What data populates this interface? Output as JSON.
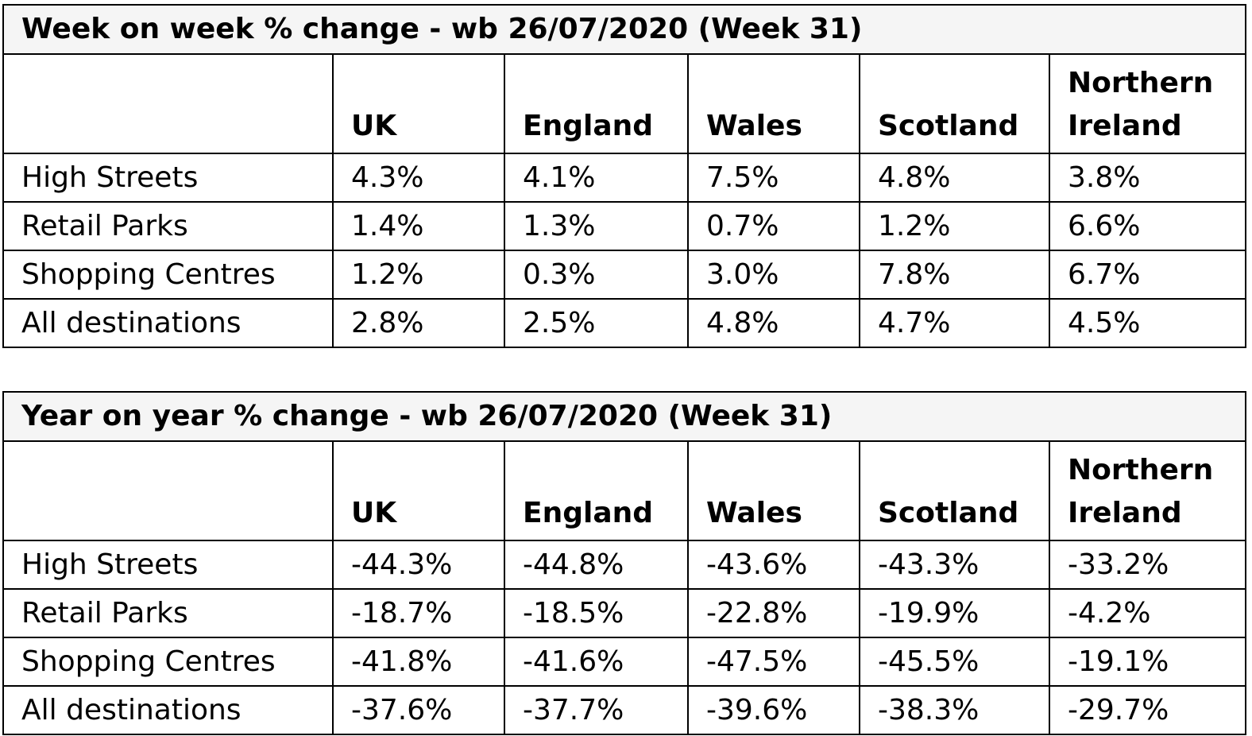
{
  "tables": [
    {
      "title": "Week on week % change - wb 26/07/2020 (Week 31)",
      "columns": [
        "",
        "UK",
        "England",
        "Wales",
        "Scotland",
        "Northern Ireland"
      ],
      "rows": [
        {
          "label": "High Streets",
          "values": [
            "4.3%",
            "4.1%",
            "7.5%",
            "4.8%",
            "3.8%"
          ]
        },
        {
          "label": "Retail Parks",
          "values": [
            "1.4%",
            "1.3%",
            "0.7%",
            "1.2%",
            "6.6%"
          ]
        },
        {
          "label": "Shopping Centres",
          "values": [
            "1.2%",
            "0.3%",
            "3.0%",
            "7.8%",
            "6.7%"
          ]
        },
        {
          "label": "All destinations",
          "values": [
            "2.8%",
            "2.5%",
            "4.8%",
            "4.7%",
            "4.5%"
          ]
        }
      ]
    },
    {
      "title": "Year on year % change - wb 26/07/2020 (Week 31)",
      "columns": [
        "",
        "UK",
        "England",
        "Wales",
        "Scotland",
        "Northern Ireland"
      ],
      "rows": [
        {
          "label": "High Streets",
          "values": [
            "-44.3%",
            "-44.8%",
            "-43.6%",
            "-43.3%",
            "-33.2%"
          ]
        },
        {
          "label": "Retail Parks",
          "values": [
            "-18.7%",
            "-18.5%",
            "-22.8%",
            "-19.9%",
            "-4.2%"
          ]
        },
        {
          "label": "Shopping Centres",
          "values": [
            "-41.8%",
            "-41.6%",
            "-47.5%",
            "-45.5%",
            "-19.1%"
          ]
        },
        {
          "label": "All destinations",
          "values": [
            "-37.6%",
            "-37.7%",
            "-39.6%",
            "-38.3%",
            "-29.7%"
          ]
        }
      ]
    }
  ]
}
